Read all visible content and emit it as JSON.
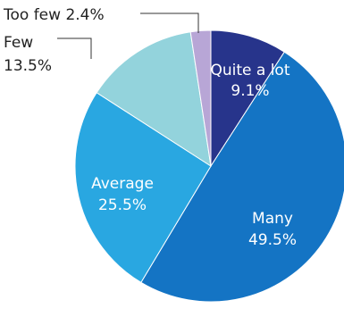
{
  "chart_data": {
    "type": "pie",
    "title": "",
    "slices": [
      {
        "label": "Quite a lot",
        "value": 9.1,
        "display": "9.1%",
        "color": "#27348b",
        "label_position": "inside"
      },
      {
        "label": "Many",
        "value": 49.5,
        "display": "49.5%",
        "color": "#1474c4",
        "label_position": "inside"
      },
      {
        "label": "Average",
        "value": 25.5,
        "display": "25.5%",
        "color": "#29a7e1",
        "label_position": "inside"
      },
      {
        "label": "Few",
        "value": 13.5,
        "display": "13.5%",
        "color": "#93d3dc",
        "label_position": "outside"
      },
      {
        "label": "Too few",
        "value": 2.4,
        "display": "2.4%",
        "color": "#b8a6d6",
        "label_position": "outside"
      }
    ],
    "start": "12 o'clock",
    "direction": "clockwise",
    "legend": "none"
  }
}
